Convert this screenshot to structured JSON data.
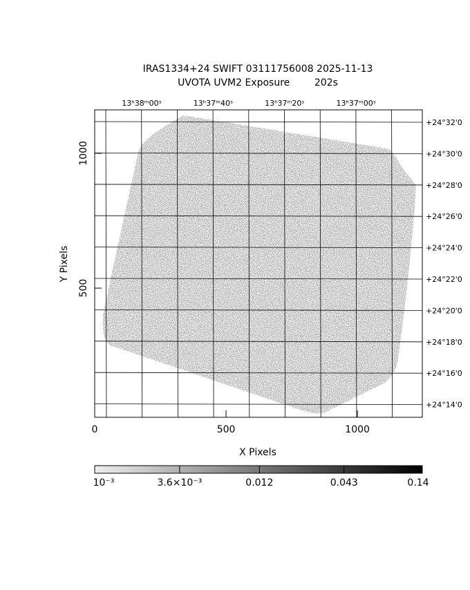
{
  "chart_data": {
    "type": "image",
    "title": "IRAS1334+24 SWIFT 03111756008 2025-11-13",
    "subtitle": "UVOTA UVM2 Exposure        202s",
    "xlabel": "X Pixels",
    "ylabel": "Y Pixels",
    "xlim": [
      0,
      1247
    ],
    "xticks": [
      0,
      500,
      1000
    ],
    "ylim": [
      21,
      1161
    ],
    "yticks": [
      500,
      1000
    ],
    "ra_labels": [
      "13ʰ38ᵐ00ˢ",
      "13ʰ37ᵐ40ˢ",
      "13ʰ37ᵐ20ˢ",
      "13ʰ37ᵐ00ˢ"
    ],
    "dec_labels": [
      "+24°32'0",
      "+24°30'0",
      "+24°28'0",
      "+24°26'0",
      "+24°24'0",
      "+24°22'0",
      "+24°20'0",
      "+24°18'0",
      "+24°16'0",
      "+24°14'0"
    ],
    "grid": true,
    "colorbar": {
      "log": true,
      "lim": [
        0.001,
        0.14
      ],
      "ticks": [
        {
          "value": 0.001,
          "label": "10⁻³"
        },
        {
          "value": 0.0036,
          "label": "3.6×10⁻³"
        },
        0.012,
        0.043,
        0.14
      ]
    }
  }
}
